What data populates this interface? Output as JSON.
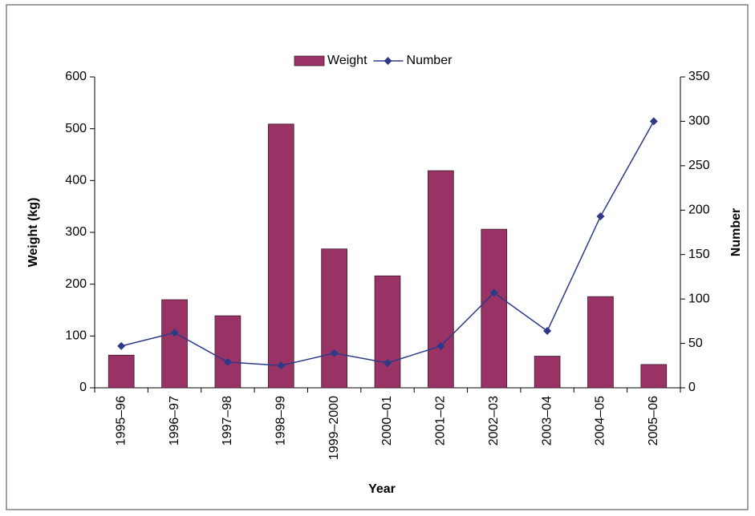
{
  "chart_data": {
    "type": "bar",
    "x_label": "Year",
    "y_label": "Weight (kg)",
    "y2_label": "Number",
    "categories": [
      "1995–96",
      "1996–97",
      "1997–98",
      "1998–99",
      "1999–2000",
      "2000–01",
      "2001–02",
      "2002–03",
      "2003–04",
      "2004–05",
      "2005–06"
    ],
    "series": [
      {
        "name": "Weight",
        "type": "bar",
        "color": "#993366",
        "values": [
          63,
          170,
          139,
          509,
          268,
          216,
          419,
          306,
          61,
          176,
          45
        ]
      },
      {
        "name": "Number",
        "type": "line",
        "axis": "y2",
        "color": "#2e3a87",
        "values": [
          47,
          62,
          29,
          25,
          39,
          28,
          47,
          107,
          64,
          193,
          300
        ]
      }
    ],
    "ylim": [
      0,
      600
    ],
    "yticks": [
      0,
      100,
      200,
      300,
      400,
      500,
      600
    ],
    "y2lim": [
      0,
      350
    ],
    "y2ticks": [
      0,
      50,
      100,
      150,
      200,
      250,
      300,
      350
    ],
    "legend": "top",
    "grid": false
  }
}
